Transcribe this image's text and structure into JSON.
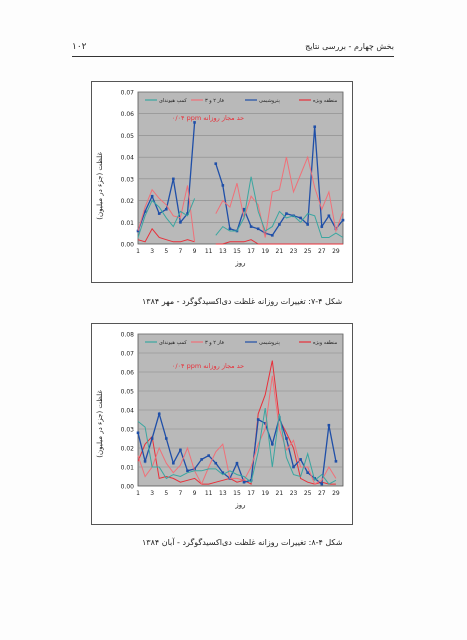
{
  "header": {
    "page_number": "۱۰۲",
    "title": "بخش چهارم - بررسی نتایج"
  },
  "figures": [
    {
      "caption": "شکل ۴-۷: تغییرات روزانه غلظت دی‌اکسیدگوگرد - مهر ۱۳۸۴",
      "ylabel": "غلظت (جزء در میلیون)",
      "xlabel": "روز",
      "annotation": "۰/۰۴ ppm حد مجاز روزانه",
      "chart_data": {
        "type": "line",
        "x": [
          1,
          2,
          3,
          4,
          5,
          6,
          7,
          8,
          9,
          10,
          11,
          12,
          13,
          14,
          15,
          16,
          17,
          18,
          19,
          20,
          21,
          22,
          23,
          24,
          25,
          26,
          27,
          28,
          29,
          30
        ],
        "xticks": [
          1,
          3,
          5,
          7,
          9,
          11,
          13,
          15,
          17,
          19,
          21,
          23,
          25,
          27,
          29
        ],
        "ylim": [
          0,
          0.07
        ],
        "yticks": [
          "0.00",
          "0.01",
          "0.02",
          "0.03",
          "0.04",
          "0.05",
          "0.06",
          "0.07"
        ],
        "legend": [
          "منطقه ویژه",
          "پتروشیمی",
          "فاز ۲ و ۳",
          "کمپ هیوندای"
        ],
        "series": [
          {
            "name": "منطقه ویژه",
            "color": "#e8303a",
            "values": [
              0.002,
              0.001,
              0.007,
              0.003,
              0.002,
              0.001,
              0.001,
              0.002,
              0.001,
              null,
              null,
              0,
              0,
              0.001,
              0.001,
              0.001,
              0.002,
              0,
              0,
              0,
              0,
              0,
              0,
              0,
              0,
              0,
              0,
              0,
              0,
              0
            ]
          },
          {
            "name": "پتروشیمی",
            "color": "#1f4fa8",
            "values": [
              0.006,
              0.015,
              0.022,
              0.014,
              0.016,
              0.03,
              0.01,
              0.014,
              0.056,
              null,
              null,
              0.037,
              0.027,
              0.007,
              0.006,
              0.016,
              0.008,
              0.007,
              0.005,
              0.004,
              0.009,
              0.014,
              0.013,
              0.012,
              0.009,
              0.054,
              0.008,
              0.013,
              0.007,
              0.011
            ]
          },
          {
            "name": "فاز ۲ و ۳",
            "color": "#f07078",
            "values": [
              0.006,
              0.017,
              0.025,
              0.021,
              0.018,
              0.013,
              0.012,
              0.027,
              0.001,
              null,
              null,
              0.014,
              0.02,
              0.017,
              0.028,
              0.012,
              0.022,
              0.018,
              0.003,
              0.024,
              0.025,
              0.04,
              0.024,
              0.032,
              0.04,
              0.026,
              0.016,
              0.024,
              0.006,
              0.015
            ]
          },
          {
            "name": "کمپ هیوندای",
            "color": "#3aa6a0",
            "values": [
              0.003,
              0.013,
              0.02,
              0.017,
              0.012,
              0.008,
              0.015,
              0.013,
              0.021,
              null,
              null,
              0.004,
              0.008,
              0.006,
              0.006,
              0.012,
              0.031,
              0.015,
              0.006,
              0.008,
              0.015,
              0.012,
              0.013,
              0.01,
              0.014,
              0.013,
              0.003,
              0.003,
              0.005,
              0.003
            ]
          }
        ]
      }
    },
    {
      "caption": "شکل ۴-۸: تغییرات روزانه غلظت دی‌اکسیدگوگرد - آبان ۱۳۸۴",
      "ylabel": "غلظت (جزء در میلیون)",
      "xlabel": "روز",
      "annotation": "۰/۰۴ ppm حد مجاز روزانه",
      "chart_data": {
        "type": "line",
        "x": [
          1,
          2,
          3,
          4,
          5,
          6,
          7,
          8,
          9,
          10,
          11,
          12,
          13,
          14,
          15,
          16,
          17,
          18,
          19,
          20,
          21,
          22,
          23,
          24,
          25,
          26,
          27,
          28,
          29
        ],
        "xticks": [
          1,
          3,
          5,
          7,
          9,
          11,
          13,
          15,
          17,
          19,
          21,
          23,
          25,
          27,
          29
        ],
        "ylim": [
          0,
          0.08
        ],
        "yticks": [
          "0.00",
          "0.01",
          "0.02",
          "0.03",
          "0.04",
          "0.05",
          "0.06",
          "0.07",
          "0.08"
        ],
        "legend": [
          "منطقه ویژه",
          "پتروشیمی",
          "فاز ۲ و ۳",
          "کمپ هیوندای"
        ],
        "series": [
          {
            "name": "منطقه ویژه",
            "color": "#e8303a",
            "values": [
              0.013,
              0.022,
              0.026,
              0.004,
              0.005,
              0.004,
              0.002,
              0.003,
              0.004,
              0.001,
              0.001,
              0.002,
              0.003,
              0.004,
              0.002,
              0.003,
              0.001,
              0.038,
              0.048,
              0.066,
              0.035,
              0.028,
              0.02,
              0.004,
              0.002,
              0.001,
              0.002,
              0.001,
              0.001
            ]
          },
          {
            "name": "پتروشیمی",
            "color": "#1f4fa8",
            "values": [
              0.028,
              0.013,
              0.025,
              0.038,
              0.025,
              0.012,
              0.019,
              0.008,
              0.009,
              0.014,
              0.016,
              0.012,
              0.007,
              0.004,
              0.012,
              0.002,
              0.003,
              0.035,
              0.033,
              0.022,
              0.036,
              0.025,
              0.01,
              0.014,
              0.007,
              0.004,
              0.001,
              0.032,
              0.013
            ]
          },
          {
            "name": "فاز ۲ و ۳",
            "color": "#f07078",
            "values": [
              0.016,
              0.005,
              0.01,
              0.02,
              0.012,
              0.007,
              0.011,
              0.02,
              0.008,
              0.001,
              0.01,
              0.018,
              0.022,
              0.004,
              0.004,
              0.003,
              0.01,
              0.022,
              0.03,
              0.058,
              0.03,
              0.019,
              0.024,
              0.01,
              0.01,
              0.001,
              0.003,
              0.01,
              0.004
            ]
          },
          {
            "name": "کمپ هیوندای",
            "color": "#3aa6a0",
            "values": [
              0.034,
              0.031,
              0.01,
              0.01,
              0.004,
              0.006,
              0.005,
              0.007,
              0.008,
              0.008,
              0.009,
              0.009,
              0.006,
              0.008,
              0.006,
              0.005,
              0.002,
              0.018,
              0.041,
              0.01,
              0.038,
              0.015,
              0.006,
              0.005,
              0.017,
              0.003,
              0.006,
              0.001,
              0.003
            ]
          }
        ]
      }
    }
  ]
}
